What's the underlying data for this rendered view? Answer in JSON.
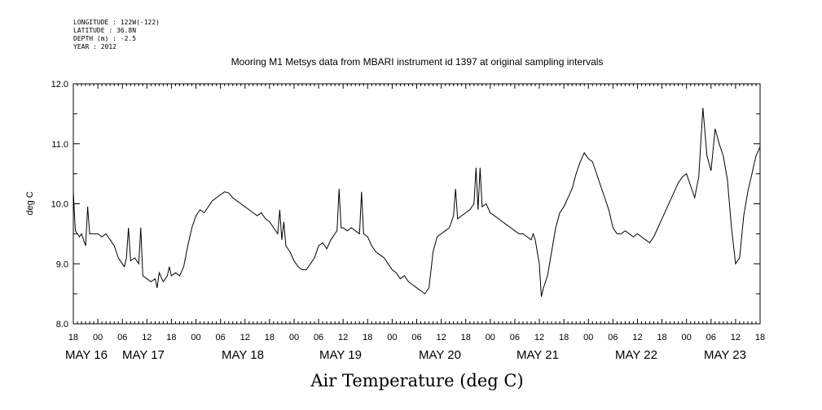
{
  "header": {
    "longitude": "LONGITUDE : 122W(-122)",
    "latitude": "LATITUDE : 36.8N",
    "depth": "DEPTH (m) : -2.5",
    "year": "YEAR : 2012"
  },
  "chart_data": {
    "type": "line",
    "title": "Mooring M1 Metsys data from MBARI instrument id 1397 at original sampling intervals",
    "xlabel": "Air Temperature (deg C)",
    "ylabel": "deg C",
    "ylim": [
      8.0,
      12.0
    ],
    "y_ticks": [
      "8.0",
      "9.0",
      "10.0",
      "11.0",
      "12.0"
    ],
    "x_hour_ticks": [
      "18",
      "00",
      "06",
      "12",
      "18",
      "00",
      "06",
      "12",
      "18",
      "00",
      "06",
      "12",
      "18",
      "00",
      "06",
      "12",
      "18",
      "00",
      "06",
      "12",
      "18",
      "00",
      "06",
      "12",
      "18",
      "00",
      "06",
      "12",
      "18"
    ],
    "x_day_labels": [
      "MAY 16",
      "MAY 17",
      "MAY 18",
      "MAY 19",
      "MAY 20",
      "MAY 21",
      "MAY 22",
      "MAY 23"
    ],
    "x_range_hours": [
      18,
      186
    ],
    "grid": false,
    "series": [
      {
        "points": [
          [
            18,
            10.2
          ],
          [
            18.5,
            9.55
          ],
          [
            19,
            9.5
          ],
          [
            19.5,
            9.45
          ],
          [
            20,
            9.5
          ],
          [
            20.5,
            9.4
          ],
          [
            21,
            9.3
          ],
          [
            21.5,
            9.95
          ],
          [
            22,
            9.5
          ],
          [
            23,
            9.5
          ],
          [
            24,
            9.5
          ],
          [
            25,
            9.45
          ],
          [
            26,
            9.5
          ],
          [
            27,
            9.4
          ],
          [
            28,
            9.3
          ],
          [
            28.5,
            9.2
          ],
          [
            29,
            9.1
          ],
          [
            30,
            9.0
          ],
          [
            30.5,
            8.95
          ],
          [
            31,
            9.1
          ],
          [
            31.5,
            9.6
          ],
          [
            32,
            9.05
          ],
          [
            33,
            9.1
          ],
          [
            34,
            9.0
          ],
          [
            34.5,
            9.6
          ],
          [
            35,
            8.8
          ],
          [
            36,
            8.75
          ],
          [
            37,
            8.7
          ],
          [
            38,
            8.75
          ],
          [
            38.5,
            8.6
          ],
          [
            39,
            8.85
          ],
          [
            40,
            8.7
          ],
          [
            41,
            8.8
          ],
          [
            41.5,
            8.95
          ],
          [
            42,
            8.8
          ],
          [
            43,
            8.85
          ],
          [
            44,
            8.8
          ],
          [
            45,
            8.95
          ],
          [
            46,
            9.3
          ],
          [
            47,
            9.6
          ],
          [
            48,
            9.8
          ],
          [
            49,
            9.9
          ],
          [
            50,
            9.85
          ],
          [
            51,
            9.95
          ],
          [
            52,
            10.05
          ],
          [
            53,
            10.1
          ],
          [
            54,
            10.15
          ],
          [
            55,
            10.2
          ],
          [
            56,
            10.18
          ],
          [
            57,
            10.1
          ],
          [
            58,
            10.05
          ],
          [
            59,
            10.0
          ],
          [
            60,
            9.95
          ],
          [
            61,
            9.9
          ],
          [
            62,
            9.85
          ],
          [
            63,
            9.8
          ],
          [
            64,
            9.85
          ],
          [
            65,
            9.75
          ],
          [
            66,
            9.7
          ],
          [
            67,
            9.6
          ],
          [
            68,
            9.5
          ],
          [
            68.5,
            9.9
          ],
          [
            69,
            9.4
          ],
          [
            69.5,
            9.7
          ],
          [
            70,
            9.3
          ],
          [
            71,
            9.2
          ],
          [
            72,
            9.05
          ],
          [
            73,
            8.95
          ],
          [
            74,
            8.9
          ],
          [
            75,
            8.9
          ],
          [
            76,
            9.0
          ],
          [
            77,
            9.1
          ],
          [
            78,
            9.3
          ],
          [
            79,
            9.35
          ],
          [
            80,
            9.25
          ],
          [
            81,
            9.4
          ],
          [
            82,
            9.5
          ],
          [
            82.5,
            9.55
          ],
          [
            83,
            10.25
          ],
          [
            83.5,
            9.6
          ],
          [
            84,
            9.6
          ],
          [
            85,
            9.55
          ],
          [
            86,
            9.6
          ],
          [
            87,
            9.55
          ],
          [
            88,
            9.5
          ],
          [
            88.5,
            10.2
          ],
          [
            89,
            9.5
          ],
          [
            90,
            9.45
          ],
          [
            91,
            9.3
          ],
          [
            92,
            9.2
          ],
          [
            93,
            9.15
          ],
          [
            94,
            9.1
          ],
          [
            95,
            9.0
          ],
          [
            96,
            8.9
          ],
          [
            97,
            8.85
          ],
          [
            98,
            8.75
          ],
          [
            99,
            8.8
          ],
          [
            100,
            8.7
          ],
          [
            101,
            8.65
          ],
          [
            102,
            8.6
          ],
          [
            103,
            8.55
          ],
          [
            104,
            8.5
          ],
          [
            105,
            8.6
          ],
          [
            106,
            9.2
          ],
          [
            107,
            9.45
          ],
          [
            108,
            9.5
          ],
          [
            109,
            9.55
          ],
          [
            110,
            9.6
          ],
          [
            111,
            9.8
          ],
          [
            111.5,
            10.25
          ],
          [
            112,
            9.75
          ],
          [
            113,
            9.8
          ],
          [
            114,
            9.85
          ],
          [
            115,
            9.9
          ],
          [
            116,
            10.0
          ],
          [
            116.5,
            10.6
          ],
          [
            117,
            9.9
          ],
          [
            117.5,
            10.6
          ],
          [
            118,
            9.95
          ],
          [
            119,
            10.0
          ],
          [
            120,
            9.85
          ],
          [
            121,
            9.8
          ],
          [
            122,
            9.75
          ],
          [
            123,
            9.7
          ],
          [
            124,
            9.65
          ],
          [
            125,
            9.6
          ],
          [
            126,
            9.55
          ],
          [
            127,
            9.5
          ],
          [
            128,
            9.5
          ],
          [
            129,
            9.45
          ],
          [
            130,
            9.4
          ],
          [
            130.5,
            9.5
          ],
          [
            131,
            9.4
          ],
          [
            132,
            9.0
          ],
          [
            132.5,
            8.45
          ],
          [
            133,
            8.6
          ],
          [
            134,
            8.8
          ],
          [
            135,
            9.2
          ],
          [
            136,
            9.6
          ],
          [
            137,
            9.85
          ],
          [
            138,
            9.95
          ],
          [
            139,
            10.1
          ],
          [
            140,
            10.25
          ],
          [
            141,
            10.5
          ],
          [
            142,
            10.7
          ],
          [
            143,
            10.85
          ],
          [
            144,
            10.75
          ],
          [
            145,
            10.7
          ],
          [
            146,
            10.5
          ],
          [
            147,
            10.3
          ],
          [
            148,
            10.1
          ],
          [
            149,
            9.9
          ],
          [
            150,
            9.6
          ],
          [
            151,
            9.5
          ],
          [
            152,
            9.5
          ],
          [
            153,
            9.55
          ],
          [
            154,
            9.5
          ],
          [
            155,
            9.45
          ],
          [
            156,
            9.5
          ],
          [
            157,
            9.45
          ],
          [
            158,
            9.4
          ],
          [
            159,
            9.35
          ],
          [
            160,
            9.45
          ],
          [
            161,
            9.6
          ],
          [
            162,
            9.75
          ],
          [
            163,
            9.9
          ],
          [
            164,
            10.05
          ],
          [
            165,
            10.2
          ],
          [
            166,
            10.35
          ],
          [
            167,
            10.45
          ],
          [
            168,
            10.5
          ],
          [
            169,
            10.3
          ],
          [
            170,
            10.1
          ],
          [
            171,
            10.45
          ],
          [
            172,
            11.6
          ],
          [
            173,
            10.8
          ],
          [
            174,
            10.55
          ],
          [
            175,
            11.25
          ],
          [
            176,
            11.0
          ],
          [
            177,
            10.8
          ],
          [
            178,
            10.4
          ],
          [
            179,
            9.6
          ],
          [
            180,
            9.0
          ],
          [
            181,
            9.1
          ],
          [
            182,
            9.8
          ],
          [
            183,
            10.2
          ],
          [
            184,
            10.5
          ],
          [
            185,
            10.8
          ],
          [
            186,
            10.95
          ]
        ]
      }
    ]
  }
}
